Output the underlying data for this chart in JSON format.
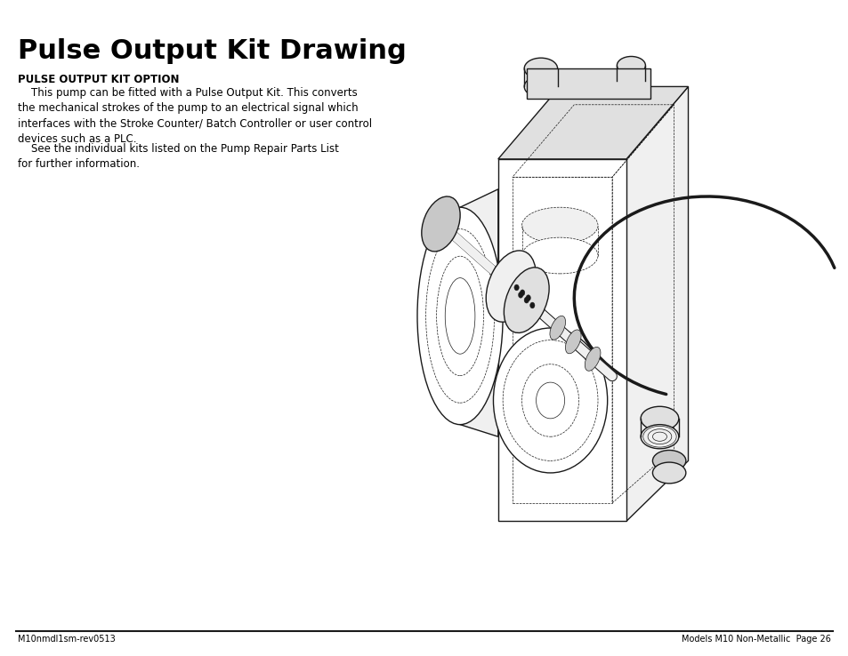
{
  "background_color": "#ffffff",
  "title": "Pulse Output Kit Drawing",
  "title_fontsize": 22,
  "section_heading": "PULSE OUTPUT KIT OPTION",
  "section_heading_fontsize": 8.5,
  "body_text_1": "    This pump can be fitted with a Pulse Output Kit. This converts\nthe mechanical strokes of the pump to an electrical signal which\ninterfaces with the Stroke Counter/ Batch Controller or user control\ndevices such as a PLC.",
  "body_text_2": "    See the individual kits listed on the Pump Repair Parts List\nfor further information.",
  "body_fontsize": 8.5,
  "footer_left": "M10nmdl1sm-rev0513",
  "footer_right": "Models M10 Non-Metallic  Page 26",
  "footer_fontsize": 7,
  "text_color": "#000000",
  "lw_main": 1.0,
  "lw_thin": 0.5,
  "lw_thick": 1.5,
  "lw_cable": 2.5,
  "color_line": "#1a1a1a",
  "color_fill_light": "#f0f0f0",
  "color_fill_mid": "#e0e0e0",
  "color_fill_dark": "#c8c8c8"
}
